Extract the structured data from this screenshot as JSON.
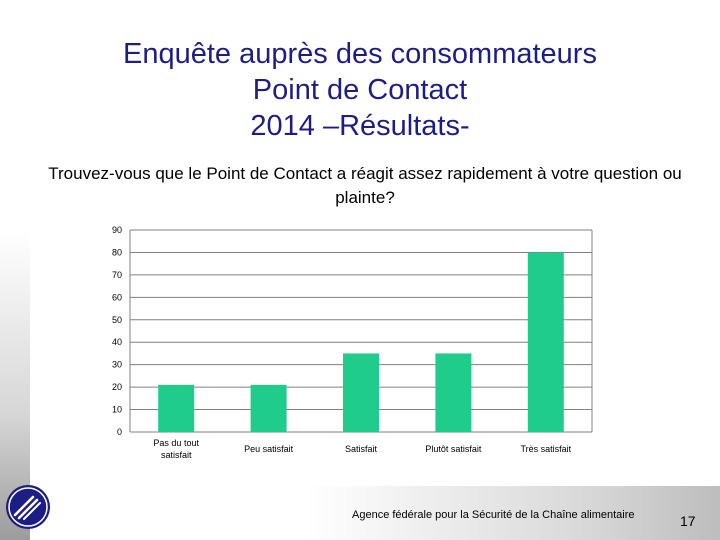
{
  "slide": {
    "title_line1": "Enquête auprès des consommateurs",
    "title_line2": "Point de Contact",
    "title_line3": "2014 –Résultats-",
    "question": "Trouvez-vous que le Point de Contact a réagit assez rapidement à votre question ou plainte?",
    "footer": "Agence fédérale pour la Sécurité de la Chaîne alimentaire",
    "page_number": "17"
  },
  "chart_data": {
    "type": "bar",
    "categories": [
      [
        "Pas du tout",
        "satisfait"
      ],
      [
        "Peu satisfait"
      ],
      [
        "Satisfait"
      ],
      [
        "Plutôt satisfait"
      ],
      [
        "Très satisfait"
      ]
    ],
    "values": [
      21,
      21,
      35,
      35,
      80
    ],
    "ylim": [
      0,
      90
    ],
    "yticks": [
      0,
      10,
      20,
      30,
      40,
      50,
      60,
      70,
      80,
      90
    ],
    "grid": true,
    "legend": "none",
    "bar_color": "#20cc8c",
    "grid_color": "#808080"
  }
}
